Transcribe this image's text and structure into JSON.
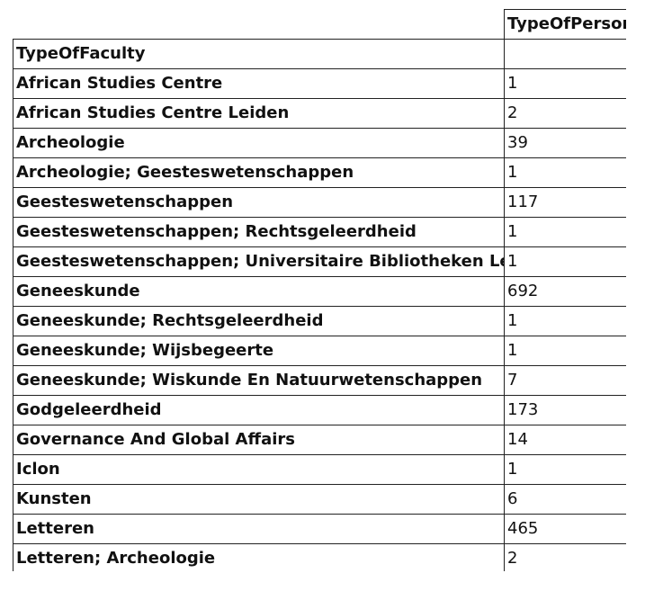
{
  "table": {
    "column_header": "TypeOfPerson",
    "index_name": "TypeOfFaculty",
    "rows": [
      {
        "label": "African Studies Centre",
        "value": "1"
      },
      {
        "label": "African Studies Centre Leiden",
        "value": "2"
      },
      {
        "label": "Archeologie",
        "value": "39"
      },
      {
        "label": "Archeologie; Geesteswetenschappen",
        "value": "1"
      },
      {
        "label": "Geesteswetenschappen",
        "value": "117"
      },
      {
        "label": "Geesteswetenschappen; Rechtsgeleerdheid",
        "value": "1"
      },
      {
        "label": "Geesteswetenschappen; Universitaire Bibliotheken Leiden",
        "value": "1"
      },
      {
        "label": "Geneeskunde",
        "value": "692"
      },
      {
        "label": "Geneeskunde; Rechtsgeleerdheid",
        "value": "1"
      },
      {
        "label": "Geneeskunde; Wijsbegeerte",
        "value": "1"
      },
      {
        "label": "Geneeskunde; Wiskunde En Natuurwetenschappen",
        "value": "7"
      },
      {
        "label": "Godgeleerdheid",
        "value": "173"
      },
      {
        "label": "Governance And Global Affairs",
        "value": "14"
      },
      {
        "label": "Iclon",
        "value": "1"
      },
      {
        "label": "Kunsten",
        "value": "6"
      },
      {
        "label": "Letteren",
        "value": "465"
      },
      {
        "label": "Letteren; Archeologie",
        "value": "2"
      }
    ]
  }
}
